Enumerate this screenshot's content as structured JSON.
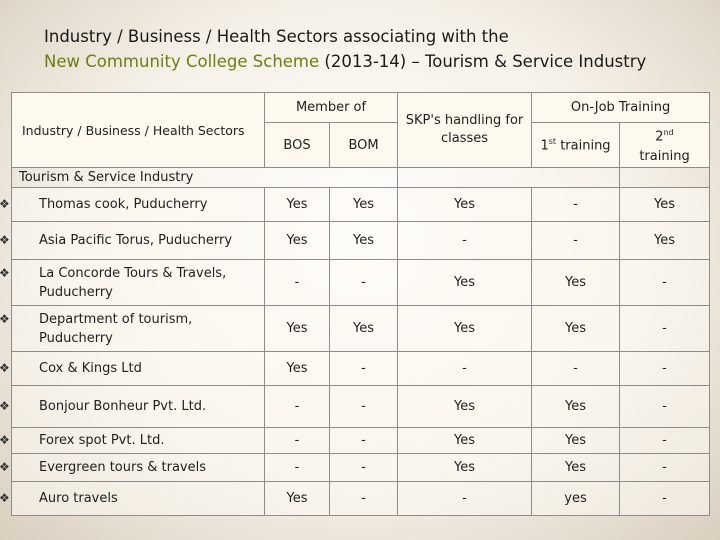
{
  "title": {
    "line1": "Industry / Business / Health Sectors associating with the",
    "highlight": "New Community College Scheme",
    "rest": " (2013-14) – Tourism & Service Industry"
  },
  "table": {
    "corner_header": "Industry / Business / Health Sectors",
    "member_of": "Member of",
    "bos": "BOS",
    "bom": "BOM",
    "skp": "SKP's handling for classes",
    "ojt": "On-Job Training",
    "first_training": {
      "num": "1",
      "sup": "st",
      "text": " training"
    },
    "second_training": {
      "num": "2",
      "sup": "nd",
      "text": "training"
    },
    "section_label": "Tourism & Service Industry",
    "bullet_icon": "diamond-bullet",
    "rows": [
      {
        "name": "Thomas cook, Puducherry",
        "bos": "Yes",
        "bom": "Yes",
        "skp": "Yes",
        "t1": "-",
        "t2": "Yes"
      },
      {
        "name": "Asia Pacific Torus, Puducherry",
        "bos": "Yes",
        "bom": "Yes",
        "skp": "-",
        "t1": "-",
        "t2": "Yes"
      },
      {
        "name": "La Concorde Tours & Travels, Puducherry",
        "bos": "-",
        "bom": "-",
        "skp": "Yes",
        "t1": "Yes",
        "t2": "-"
      },
      {
        "name": "Department of tourism, Puducherry",
        "bos": "Yes",
        "bom": "Yes",
        "skp": "Yes",
        "t1": "Yes",
        "t2": "-"
      },
      {
        "name": "Cox & Kings Ltd",
        "bos": "Yes",
        "bom": "-",
        "skp": "-",
        "t1": "-",
        "t2": "-"
      },
      {
        "name": "Bonjour Bonheur Pvt. Ltd.",
        "bos": "-",
        "bom": "-",
        "skp": "Yes",
        "t1": "Yes",
        "t2": "-"
      },
      {
        "name": "Forex spot Pvt. Ltd.",
        "bos": "-",
        "bom": "-",
        "skp": "Yes",
        "t1": "Yes",
        "t2": "-"
      },
      {
        "name": "Evergreen tours & travels",
        "bos": "-",
        "bom": "-",
        "skp": "Yes",
        "t1": "Yes",
        "t2": "-"
      },
      {
        "name": "Auro travels",
        "bos": "Yes",
        "bom": "-",
        "skp": "-",
        "t1": "yes",
        "t2": "-"
      }
    ]
  }
}
